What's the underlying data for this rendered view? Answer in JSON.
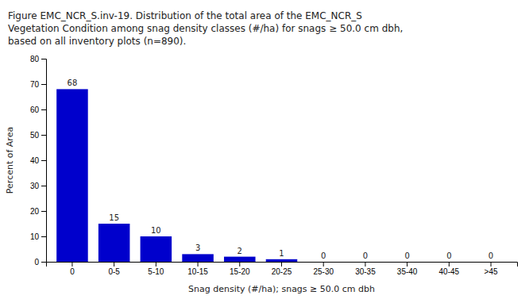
{
  "chart_data": {
    "type": "bar",
    "title": [
      "Figure EMC_NCR_S.inv-19. Distribution of the total area of the EMC_NCR_S",
      "Vegetation Condition among snag density classes (#/ha) for snags ≥ 50.0 cm dbh,",
      "based on all inventory plots (n=890)."
    ],
    "xlabel": "Snag density (#/ha); snags ≥ 50.0 cm dbh",
    "ylabel": "Percent of Area",
    "categories": [
      "0",
      "0-5",
      "5-10",
      "10-15",
      "15-20",
      "20-25",
      "25-30",
      "30-35",
      "35-40",
      "40-45",
      ">45"
    ],
    "values": [
      68,
      15,
      10,
      3,
      2,
      1,
      0,
      0,
      0,
      0,
      0
    ],
    "color": "#0000cc",
    "ylim": [
      0,
      80
    ],
    "yticks": [
      0,
      10,
      20,
      30,
      40,
      50,
      60,
      70,
      80
    ],
    "data_labels": true,
    "grid": false
  }
}
